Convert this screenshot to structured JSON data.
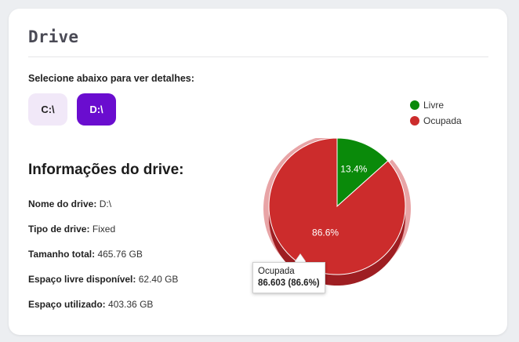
{
  "card": {
    "title": "Drive"
  },
  "selector": {
    "label": "Selecione abaixo para ver detalhes:",
    "drives": [
      {
        "label": "C:\\",
        "selected": false
      },
      {
        "label": "D:\\",
        "selected": true
      }
    ]
  },
  "info": {
    "title": "Informações do drive:",
    "rows": [
      {
        "label": "Nome do drive:",
        "value": "D:\\"
      },
      {
        "label": "Tipo de drive:",
        "value": "Fixed"
      },
      {
        "label": "Tamanho total:",
        "value": "465.76 GB"
      },
      {
        "label": "Espaço livre disponível:",
        "value": "62.40 GB"
      },
      {
        "label": "Espaço utilizado:",
        "value": "403.36 GB"
      }
    ]
  },
  "colors": {
    "livre": "#0a8a0a",
    "ocupada": "#cc2c2c",
    "ocupada_dark": "#9e1e22",
    "hover_halo": "#e8a4a6",
    "selected_drive": "#6a0dcf",
    "unselected_drive": "#f1e8f8"
  },
  "chart_data": {
    "type": "pie",
    "series": [
      {
        "name": "Livre",
        "value": 13.397,
        "label": "13.4%"
      },
      {
        "name": "Ocupada",
        "value": 86.603,
        "label": "86.6%"
      }
    ],
    "legend": "top-right",
    "tooltip": {
      "series": "Ocupada",
      "title": "Ocupada",
      "value": "86.603 (86.6%)"
    }
  }
}
